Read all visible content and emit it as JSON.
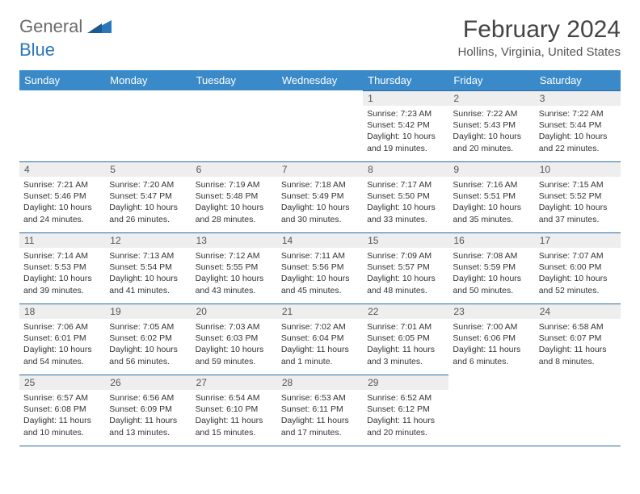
{
  "logo": {
    "word1": "General",
    "word2": "Blue"
  },
  "title": "February 2024",
  "location": "Hollins, Virginia, United States",
  "colors": {
    "header_bg": "#3a8ac9",
    "header_text": "#ffffff",
    "border": "#2a6aa3",
    "daynum_bg": "#eeeeee",
    "text": "#333333",
    "logo_gray": "#6a6a6a",
    "logo_blue": "#2a77ba"
  },
  "daysOfWeek": [
    "Sunday",
    "Monday",
    "Tuesday",
    "Wednesday",
    "Thursday",
    "Friday",
    "Saturday"
  ],
  "weeks": [
    [
      {
        "n": "",
        "sr": "",
        "ss": "",
        "dl": ""
      },
      {
        "n": "",
        "sr": "",
        "ss": "",
        "dl": ""
      },
      {
        "n": "",
        "sr": "",
        "ss": "",
        "dl": ""
      },
      {
        "n": "",
        "sr": "",
        "ss": "",
        "dl": ""
      },
      {
        "n": "1",
        "sr": "Sunrise: 7:23 AM",
        "ss": "Sunset: 5:42 PM",
        "dl": "Daylight: 10 hours and 19 minutes."
      },
      {
        "n": "2",
        "sr": "Sunrise: 7:22 AM",
        "ss": "Sunset: 5:43 PM",
        "dl": "Daylight: 10 hours and 20 minutes."
      },
      {
        "n": "3",
        "sr": "Sunrise: 7:22 AM",
        "ss": "Sunset: 5:44 PM",
        "dl": "Daylight: 10 hours and 22 minutes."
      }
    ],
    [
      {
        "n": "4",
        "sr": "Sunrise: 7:21 AM",
        "ss": "Sunset: 5:46 PM",
        "dl": "Daylight: 10 hours and 24 minutes."
      },
      {
        "n": "5",
        "sr": "Sunrise: 7:20 AM",
        "ss": "Sunset: 5:47 PM",
        "dl": "Daylight: 10 hours and 26 minutes."
      },
      {
        "n": "6",
        "sr": "Sunrise: 7:19 AM",
        "ss": "Sunset: 5:48 PM",
        "dl": "Daylight: 10 hours and 28 minutes."
      },
      {
        "n": "7",
        "sr": "Sunrise: 7:18 AM",
        "ss": "Sunset: 5:49 PM",
        "dl": "Daylight: 10 hours and 30 minutes."
      },
      {
        "n": "8",
        "sr": "Sunrise: 7:17 AM",
        "ss": "Sunset: 5:50 PM",
        "dl": "Daylight: 10 hours and 33 minutes."
      },
      {
        "n": "9",
        "sr": "Sunrise: 7:16 AM",
        "ss": "Sunset: 5:51 PM",
        "dl": "Daylight: 10 hours and 35 minutes."
      },
      {
        "n": "10",
        "sr": "Sunrise: 7:15 AM",
        "ss": "Sunset: 5:52 PM",
        "dl": "Daylight: 10 hours and 37 minutes."
      }
    ],
    [
      {
        "n": "11",
        "sr": "Sunrise: 7:14 AM",
        "ss": "Sunset: 5:53 PM",
        "dl": "Daylight: 10 hours and 39 minutes."
      },
      {
        "n": "12",
        "sr": "Sunrise: 7:13 AM",
        "ss": "Sunset: 5:54 PM",
        "dl": "Daylight: 10 hours and 41 minutes."
      },
      {
        "n": "13",
        "sr": "Sunrise: 7:12 AM",
        "ss": "Sunset: 5:55 PM",
        "dl": "Daylight: 10 hours and 43 minutes."
      },
      {
        "n": "14",
        "sr": "Sunrise: 7:11 AM",
        "ss": "Sunset: 5:56 PM",
        "dl": "Daylight: 10 hours and 45 minutes."
      },
      {
        "n": "15",
        "sr": "Sunrise: 7:09 AM",
        "ss": "Sunset: 5:57 PM",
        "dl": "Daylight: 10 hours and 48 minutes."
      },
      {
        "n": "16",
        "sr": "Sunrise: 7:08 AM",
        "ss": "Sunset: 5:59 PM",
        "dl": "Daylight: 10 hours and 50 minutes."
      },
      {
        "n": "17",
        "sr": "Sunrise: 7:07 AM",
        "ss": "Sunset: 6:00 PM",
        "dl": "Daylight: 10 hours and 52 minutes."
      }
    ],
    [
      {
        "n": "18",
        "sr": "Sunrise: 7:06 AM",
        "ss": "Sunset: 6:01 PM",
        "dl": "Daylight: 10 hours and 54 minutes."
      },
      {
        "n": "19",
        "sr": "Sunrise: 7:05 AM",
        "ss": "Sunset: 6:02 PM",
        "dl": "Daylight: 10 hours and 56 minutes."
      },
      {
        "n": "20",
        "sr": "Sunrise: 7:03 AM",
        "ss": "Sunset: 6:03 PM",
        "dl": "Daylight: 10 hours and 59 minutes."
      },
      {
        "n": "21",
        "sr": "Sunrise: 7:02 AM",
        "ss": "Sunset: 6:04 PM",
        "dl": "Daylight: 11 hours and 1 minute."
      },
      {
        "n": "22",
        "sr": "Sunrise: 7:01 AM",
        "ss": "Sunset: 6:05 PM",
        "dl": "Daylight: 11 hours and 3 minutes."
      },
      {
        "n": "23",
        "sr": "Sunrise: 7:00 AM",
        "ss": "Sunset: 6:06 PM",
        "dl": "Daylight: 11 hours and 6 minutes."
      },
      {
        "n": "24",
        "sr": "Sunrise: 6:58 AM",
        "ss": "Sunset: 6:07 PM",
        "dl": "Daylight: 11 hours and 8 minutes."
      }
    ],
    [
      {
        "n": "25",
        "sr": "Sunrise: 6:57 AM",
        "ss": "Sunset: 6:08 PM",
        "dl": "Daylight: 11 hours and 10 minutes."
      },
      {
        "n": "26",
        "sr": "Sunrise: 6:56 AM",
        "ss": "Sunset: 6:09 PM",
        "dl": "Daylight: 11 hours and 13 minutes."
      },
      {
        "n": "27",
        "sr": "Sunrise: 6:54 AM",
        "ss": "Sunset: 6:10 PM",
        "dl": "Daylight: 11 hours and 15 minutes."
      },
      {
        "n": "28",
        "sr": "Sunrise: 6:53 AM",
        "ss": "Sunset: 6:11 PM",
        "dl": "Daylight: 11 hours and 17 minutes."
      },
      {
        "n": "29",
        "sr": "Sunrise: 6:52 AM",
        "ss": "Sunset: 6:12 PM",
        "dl": "Daylight: 11 hours and 20 minutes."
      },
      {
        "n": "",
        "sr": "",
        "ss": "",
        "dl": ""
      },
      {
        "n": "",
        "sr": "",
        "ss": "",
        "dl": ""
      }
    ]
  ]
}
